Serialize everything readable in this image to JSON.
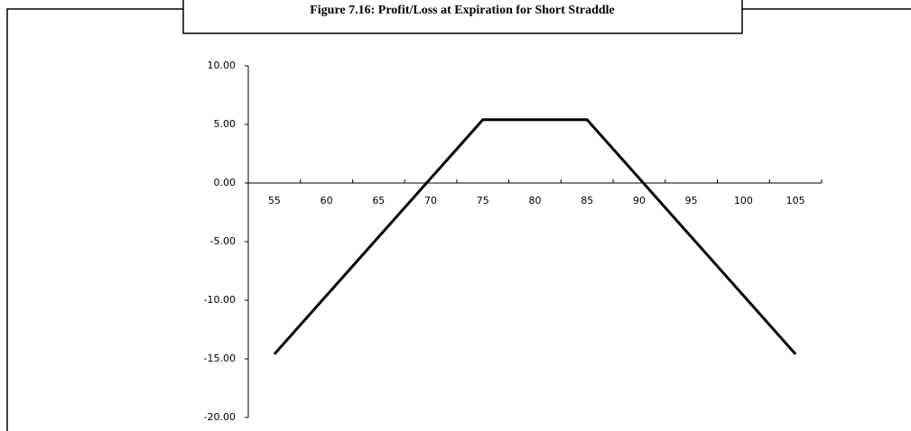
{
  "chart_data": {
    "type": "line",
    "title": "Figure 7.16: Profit/Loss at Expiration for Short Straddle",
    "categories": [
      "55",
      "60",
      "65",
      "70",
      "75",
      "80",
      "85",
      "90",
      "95",
      "100",
      "105"
    ],
    "values": [
      -14.6,
      -9.6,
      -4.6,
      0.4,
      5.4,
      5.4,
      5.4,
      0.4,
      -4.6,
      -9.6,
      -14.6
    ],
    "color": "#000000",
    "ylim": [
      -20,
      10
    ],
    "yticks": [
      {
        "value": -20,
        "label": "-20.00"
      },
      {
        "value": -15,
        "label": "-15.00"
      },
      {
        "value": -10,
        "label": "-10.00"
      },
      {
        "value": -5,
        "label": "-5.00"
      },
      {
        "value": 0,
        "label": "0.00"
      },
      {
        "value": 5,
        "label": "5.00"
      },
      {
        "value": 10,
        "label": "10.00"
      }
    ],
    "grid": false
  }
}
